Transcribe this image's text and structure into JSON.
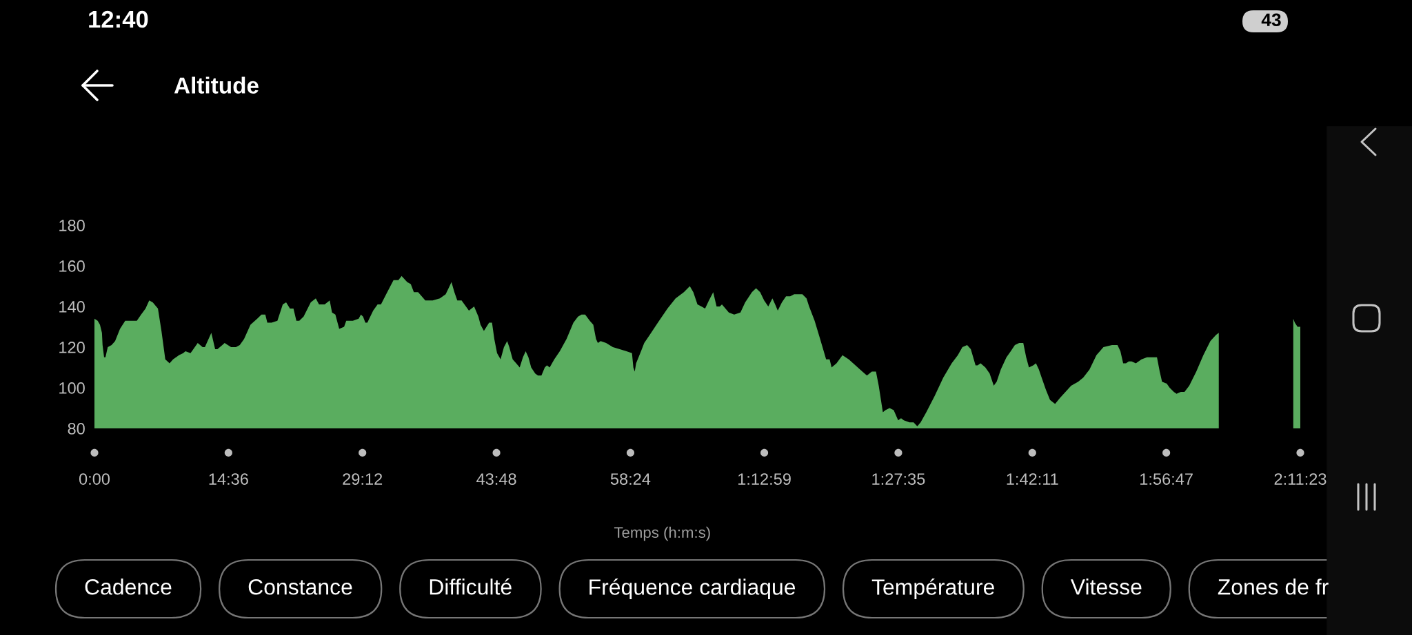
{
  "chart_data": {
    "type": "area",
    "title": "Altitude",
    "xlabel": "Temps (h:m:s)",
    "color": "#5aad5f",
    "x": [
      0,
      21,
      36,
      49,
      53,
      63,
      72,
      87,
      112,
      135,
      167,
      201,
      239,
      277,
      305,
      334,
      358,
      381,
      415,
      438,
      463,
      491,
      514,
      552,
      580,
      595,
      628,
      675,
      707,
      722,
      764,
      789,
      804,
      836,
      851,
      893,
      925,
      950,
      978,
      1020,
      1064,
      1092,
      1117,
      1130,
      1158,
      1196,
      1231,
      1253,
      1278,
      1301,
      1320,
      1339,
      1367,
      1414,
      1447,
      1468,
      1505,
      1538,
      1553,
      1575,
      1600,
      1632,
      1646,
      1689,
      1727,
      1742,
      1756,
      1771,
      1784,
      1822,
      1851,
      1873,
      1907,
      1955,
      1987,
      2008,
      2044,
      2068,
      2088,
      2116,
      2163,
      2211,
      2258,
      2296,
      2315,
      2334,
      2353,
      2372,
      2400,
      2448,
      2482,
      2510,
      2524,
      2546,
      2580,
      2599,
      2614,
      2632,
      2655,
      2677,
      2698,
      2712,
      2734,
      2757,
      2780,
      2801,
      2819,
      2837,
      2855,
      2881,
      2899,
      2922,
      2944,
      2958,
      2976,
      3006,
      3042,
      3086,
      3131,
      3161,
      3184,
      3208,
      3238,
      3261,
      3279,
      3291,
      3309,
      3345,
      3389,
      3434,
      3478,
      3514,
      3523,
      3532,
      3541,
      3568,
      3594,
      3630,
      3683,
      3746,
      3799,
      3853,
      3892,
      3915,
      3942,
      3968,
      3992,
      4017,
      4045,
      4067,
      4088,
      4102,
      4147,
      4182,
      4223,
      4254,
      4298,
      4325,
      4352,
      4378,
      4405,
      4432,
      4450,
      4467,
      4494,
      4521,
      4548,
      4574,
      4628,
      4655,
      4672,
      4708,
      4744,
      4783,
      4806,
      4819,
      4851,
      4890,
      4931,
      4975,
      5020,
      5050,
      5082,
      5109,
      5127,
      5154,
      5171,
      5198,
      5225,
      5254,
      5273,
      5291,
      5328,
      5355,
      5379,
      5401,
      5438,
      5493,
      5549,
      5604,
      5644,
      5674,
      5705,
      5729,
      5760,
      5773,
      5793,
      5824,
      5852,
      5879,
      5898,
      5925,
      5962,
      5990,
      6017,
      6045,
      6072,
      6091,
      6109,
      6137,
      6155,
      6174,
      6192,
      6220,
      6247,
      6280,
      6312,
      6348,
      6385,
      6431,
      6464,
      6505,
      6550,
      6596,
      6652,
      6688,
      6707,
      6725,
      6743,
      6762,
      6780,
      6808,
      6845,
      6881,
      6918,
      6946,
      6964,
      6979,
      7010,
      7029,
      7056,
      7074,
      7102,
      7126,
      7157,
      7203,
      7249,
      7295,
      7332,
      7350,
      7600,
      7837,
      7847,
      7865,
      7883
    ],
    "values": [
      134,
      133,
      131,
      127,
      121,
      115,
      115,
      120,
      121,
      123,
      129,
      133,
      133,
      133,
      136,
      139,
      143,
      142,
      139,
      128,
      114,
      112,
      114,
      116,
      117,
      118,
      117,
      122,
      120,
      120,
      127,
      119,
      119,
      121,
      122,
      120,
      120,
      121,
      124,
      131,
      134,
      136,
      136,
      132,
      132,
      133,
      141,
      142,
      139,
      139,
      133,
      133,
      135,
      142,
      144,
      141,
      141,
      143,
      137,
      136,
      129,
      130,
      133,
      133,
      134,
      136,
      135,
      132,
      132,
      138,
      141,
      141,
      146,
      153,
      153,
      155,
      152,
      151,
      147,
      147,
      143,
      143,
      144,
      146,
      149,
      152,
      147,
      143,
      143,
      138,
      140,
      135,
      131,
      128,
      132,
      132,
      124,
      117,
      114,
      120,
      123,
      120,
      114,
      112,
      110,
      115,
      118,
      115,
      110,
      107,
      106,
      106,
      110,
      111,
      110,
      114,
      118,
      124,
      132,
      135,
      136,
      136,
      133,
      131,
      124,
      122,
      123,
      122,
      120,
      119,
      118,
      117,
      110,
      108,
      112,
      117,
      122,
      126,
      132,
      139,
      144,
      147,
      150,
      147,
      141,
      140,
      139,
      143,
      147,
      140,
      140,
      141,
      137,
      136,
      137,
      142,
      147,
      149,
      147,
      143,
      140,
      144,
      141,
      138,
      142,
      145,
      145,
      146,
      146,
      144,
      140,
      133,
      124,
      114,
      114,
      110,
      112,
      116,
      114,
      111,
      108,
      106,
      108,
      108,
      101,
      88,
      89,
      90,
      89,
      84,
      85,
      84,
      83,
      83,
      81,
      83,
      88,
      96,
      105,
      112,
      116,
      120,
      121,
      119,
      111,
      111,
      112,
      110,
      107,
      101,
      103,
      109,
      115,
      118,
      121,
      122,
      122,
      115,
      110,
      111,
      112,
      109,
      105,
      99,
      94,
      92,
      95,
      98,
      101,
      103,
      105,
      109,
      116,
      120,
      121,
      121,
      118,
      112,
      112,
      113,
      113,
      112,
      114,
      115,
      115,
      115,
      108,
      103,
      102,
      100,
      98,
      97,
      98,
      98,
      101,
      108,
      116,
      123,
      126,
      127,
      null,
      134,
      132,
      130,
      130
    ],
    "xlim": [
      0,
      7883
    ],
    "xticks": [
      {
        "value": 0,
        "label": "0:00"
      },
      {
        "value": 876,
        "label": "14:36"
      },
      {
        "value": 1752,
        "label": "29:12"
      },
      {
        "value": 2628,
        "label": "43:48"
      },
      {
        "value": 3504,
        "label": "58:24"
      },
      {
        "value": 4379,
        "label": "1:12:59"
      },
      {
        "value": 5255,
        "label": "1:27:35"
      },
      {
        "value": 6131,
        "label": "1:42:11"
      },
      {
        "value": 7007,
        "label": "1:56:47"
      },
      {
        "value": 7883,
        "label": "2:11:23"
      }
    ],
    "ylim": [
      80,
      180
    ],
    "yticks": [
      80,
      100,
      120,
      140,
      160,
      180
    ],
    "annotations": [
      "12:40",
      "43",
      "Cadence",
      "Constance",
      "Difficulté",
      "Fréquence cardiaque",
      "Température",
      "Vitesse",
      "Zones de fr"
    ]
  }
}
